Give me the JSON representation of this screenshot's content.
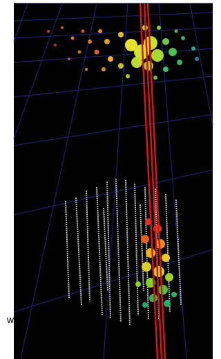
{
  "label": "w"
}
